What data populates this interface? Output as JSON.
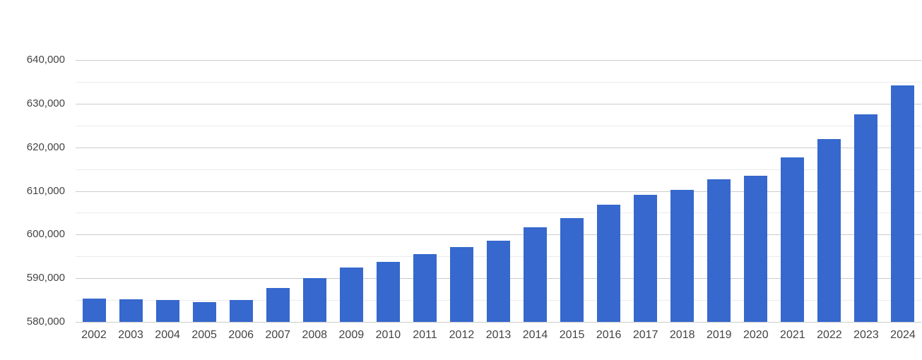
{
  "page": {
    "background_color": "#ffffff"
  },
  "chart_data": {
    "type": "bar",
    "title": "",
    "xlabel": "",
    "ylabel": "",
    "categories": [
      "2002",
      "2003",
      "2004",
      "2005",
      "2006",
      "2007",
      "2008",
      "2009",
      "2010",
      "2011",
      "2012",
      "2013",
      "2014",
      "2015",
      "2016",
      "2017",
      "2018",
      "2019",
      "2020",
      "2021",
      "2022",
      "2023",
      "2024"
    ],
    "values": [
      585300,
      585150,
      584950,
      584550,
      585050,
      587750,
      590100,
      592500,
      593700,
      595550,
      597100,
      598650,
      601750,
      603700,
      606800,
      609050,
      610300,
      612650,
      613450,
      617650,
      621850,
      627500,
      634150
    ],
    "ylim": [
      580000,
      640000
    ],
    "ytick_step": 10000,
    "minor_gridline_step": 5000,
    "ytick_labels": [
      "580,000",
      "590,000",
      "600,000",
      "610,000",
      "620,000",
      "630,000",
      "640,000"
    ],
    "grid": true,
    "legend": "none",
    "bar_color": "#3668cd",
    "major_gridline_color": "#cccccc",
    "minor_gridline_color": "#ebebeb",
    "axis_text_color": "#444444"
  }
}
